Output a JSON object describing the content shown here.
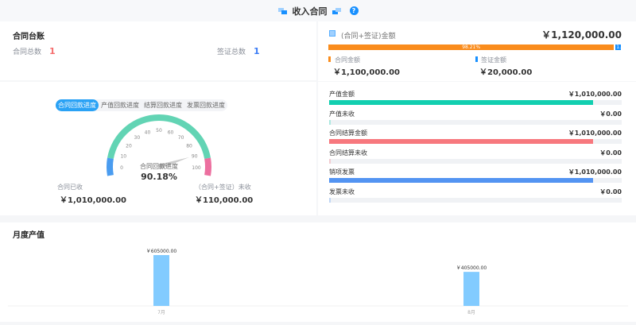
{
  "header": {
    "title": "收入合同",
    "help_icon": "question-circle-icon"
  },
  "ledger": {
    "title": "合同台账",
    "contract_count_label": "合同总数",
    "contract_count": "1",
    "visa_count_label": "签证总数",
    "visa_count": "1",
    "colors": {
      "contract": "#f56c6c",
      "visa": "#3b7cf5"
    }
  },
  "amount": {
    "label": "(合同+签证)金额",
    "total": "￥1,120,000.00",
    "percent_label": "98.21%",
    "contract_percent": 98.21,
    "visa_percent_label": "1.",
    "contract_label": "合同金额",
    "contract_value": "￥1,100,000.00",
    "visa_label": "签证金额",
    "visa_value": "￥20,000.00",
    "colors": {
      "contract": "#fa8c1c",
      "visa": "#1890ff"
    }
  },
  "gauge": {
    "tabs": [
      "合同回款进度",
      "产值回款进度",
      "结算回款进度",
      "发票回款进度"
    ],
    "active_tab": 0,
    "ticks": [
      "0",
      "10",
      "20",
      "30",
      "40",
      "50",
      "60",
      "70",
      "80",
      "90",
      "100"
    ],
    "title": "合同回款进度",
    "value": 90.18,
    "value_label": "90.18%",
    "received_label": "合同已收",
    "received_value": "￥1,010,000.00",
    "unreceived_label": "（合同+签证）未收",
    "unreceived_value": "￥110,000.00"
  },
  "progress": [
    {
      "label": "产值金额",
      "value": "￥1,010,000.00",
      "percent": 90.2,
      "color": "#12cfb0"
    },
    {
      "label": "产值未收",
      "value": "￥0.00",
      "percent": 0,
      "color": "#12cfb0"
    },
    {
      "label": "合同结算金额",
      "value": "￥1,010,000.00",
      "percent": 90.2,
      "color": "#f7787e"
    },
    {
      "label": "合同结算未收",
      "value": "￥0.00",
      "percent": 0,
      "color": "#f7787e"
    },
    {
      "label": "销项发票",
      "value": "￥1,010,000.00",
      "percent": 90.2,
      "color": "#5394f2"
    },
    {
      "label": "发票未收",
      "value": "￥0.00",
      "percent": 0,
      "color": "#5394f2"
    }
  ],
  "monthly": {
    "title": "月度产值"
  },
  "chart_data": {
    "type": "bar",
    "categories": [
      "7月",
      "8月"
    ],
    "values": [
      605000,
      405000
    ],
    "data_labels": [
      "￥605000.00",
      "￥405000.00"
    ],
    "ylim": [
      0,
      605000
    ],
    "grid": false,
    "color": "#82cbff"
  }
}
